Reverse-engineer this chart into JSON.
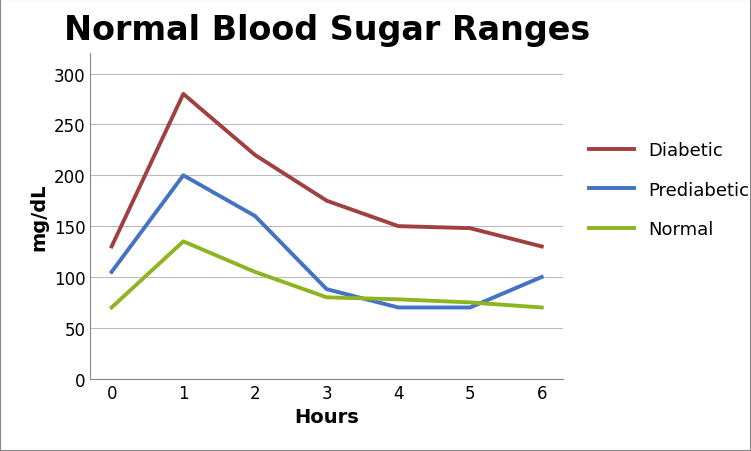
{
  "title": "Normal Blood Sugar Ranges",
  "xlabel": "Hours",
  "ylabel": "mg/dL",
  "x": [
    0,
    1,
    2,
    3,
    4,
    5,
    6
  ],
  "diabetic": [
    130,
    280,
    220,
    175,
    150,
    148,
    130
  ],
  "prediabetic": [
    105,
    200,
    160,
    88,
    70,
    70,
    100
  ],
  "normal": [
    70,
    135,
    105,
    80,
    78,
    75,
    70
  ],
  "diabetic_color": "#a04040",
  "prediabetic_color": "#4472c4",
  "normal_color": "#8db520",
  "ylim": [
    0,
    320
  ],
  "yticks": [
    0,
    50,
    100,
    150,
    200,
    250,
    300
  ],
  "xticks": [
    0,
    1,
    2,
    3,
    4,
    5,
    6
  ],
  "title_fontsize": 24,
  "axis_label_fontsize": 14,
  "tick_fontsize": 12,
  "legend_fontsize": 13,
  "line_width": 2.8,
  "background_color": "#ffffff",
  "grid_color": "#bbbbbb",
  "border_color": "#888888"
}
